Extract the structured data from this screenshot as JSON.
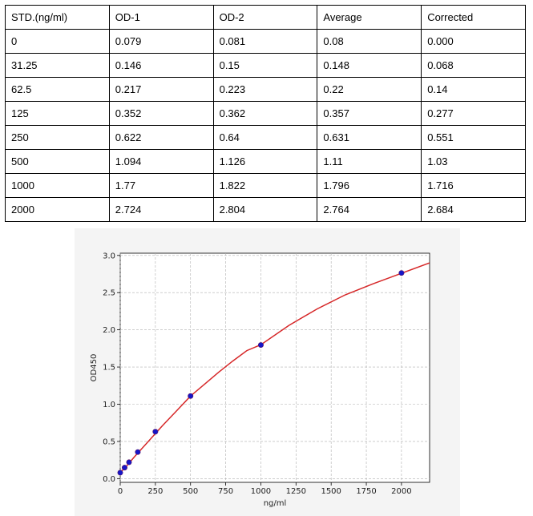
{
  "table": {
    "headers": [
      "STD.(ng/ml)",
      "OD-1",
      "OD-2",
      "Average",
      "Corrected"
    ],
    "rows": [
      [
        "0",
        "0.079",
        "0.081",
        "0.08",
        "0.000"
      ],
      [
        "31.25",
        "0.146",
        "0.15",
        "0.148",
        "0.068"
      ],
      [
        "62.5",
        "0.217",
        "0.223",
        "0.22",
        "0.14"
      ],
      [
        "125",
        "0.352",
        "0.362",
        "0.357",
        "0.277"
      ],
      [
        "250",
        "0.622",
        "0.64",
        "0.631",
        "0.551"
      ],
      [
        "500",
        "1.094",
        "1.126",
        "1.11",
        "1.03"
      ],
      [
        "1000",
        "1.77",
        "1.822",
        "1.796",
        "1.716"
      ],
      [
        "2000",
        "2.724",
        "2.804",
        "2.764",
        "2.684"
      ]
    ]
  },
  "chart_data": {
    "type": "scatter",
    "xlabel": "ng/ml",
    "ylabel": "OD450",
    "xlim": [
      0,
      2200
    ],
    "ylim": [
      -0.05,
      3.03
    ],
    "xticks": [
      0,
      250,
      500,
      750,
      1000,
      1250,
      1500,
      1750,
      2000
    ],
    "yticks": [
      0.0,
      0.5,
      1.0,
      1.5,
      2.0,
      2.5,
      3.0
    ],
    "grid": true,
    "series": [
      {
        "kind": "points",
        "color": "#1515c8",
        "x": [
          0,
          31.25,
          62.5,
          125,
          250,
          500,
          1000,
          2000
        ],
        "y": [
          0.08,
          0.148,
          0.22,
          0.357,
          0.631,
          1.11,
          1.796,
          2.764
        ]
      },
      {
        "kind": "fit-curve",
        "color": "#d62728",
        "x": [
          0,
          50,
          100,
          200,
          300,
          400,
          500,
          600,
          700,
          800,
          900,
          1000,
          1200,
          1400,
          1600,
          1800,
          2000,
          2200
        ],
        "y": [
          0.08,
          0.18,
          0.29,
          0.5,
          0.71,
          0.91,
          1.11,
          1.27,
          1.43,
          1.58,
          1.72,
          1.8,
          2.06,
          2.28,
          2.47,
          2.62,
          2.76,
          2.9
        ]
      }
    ]
  }
}
